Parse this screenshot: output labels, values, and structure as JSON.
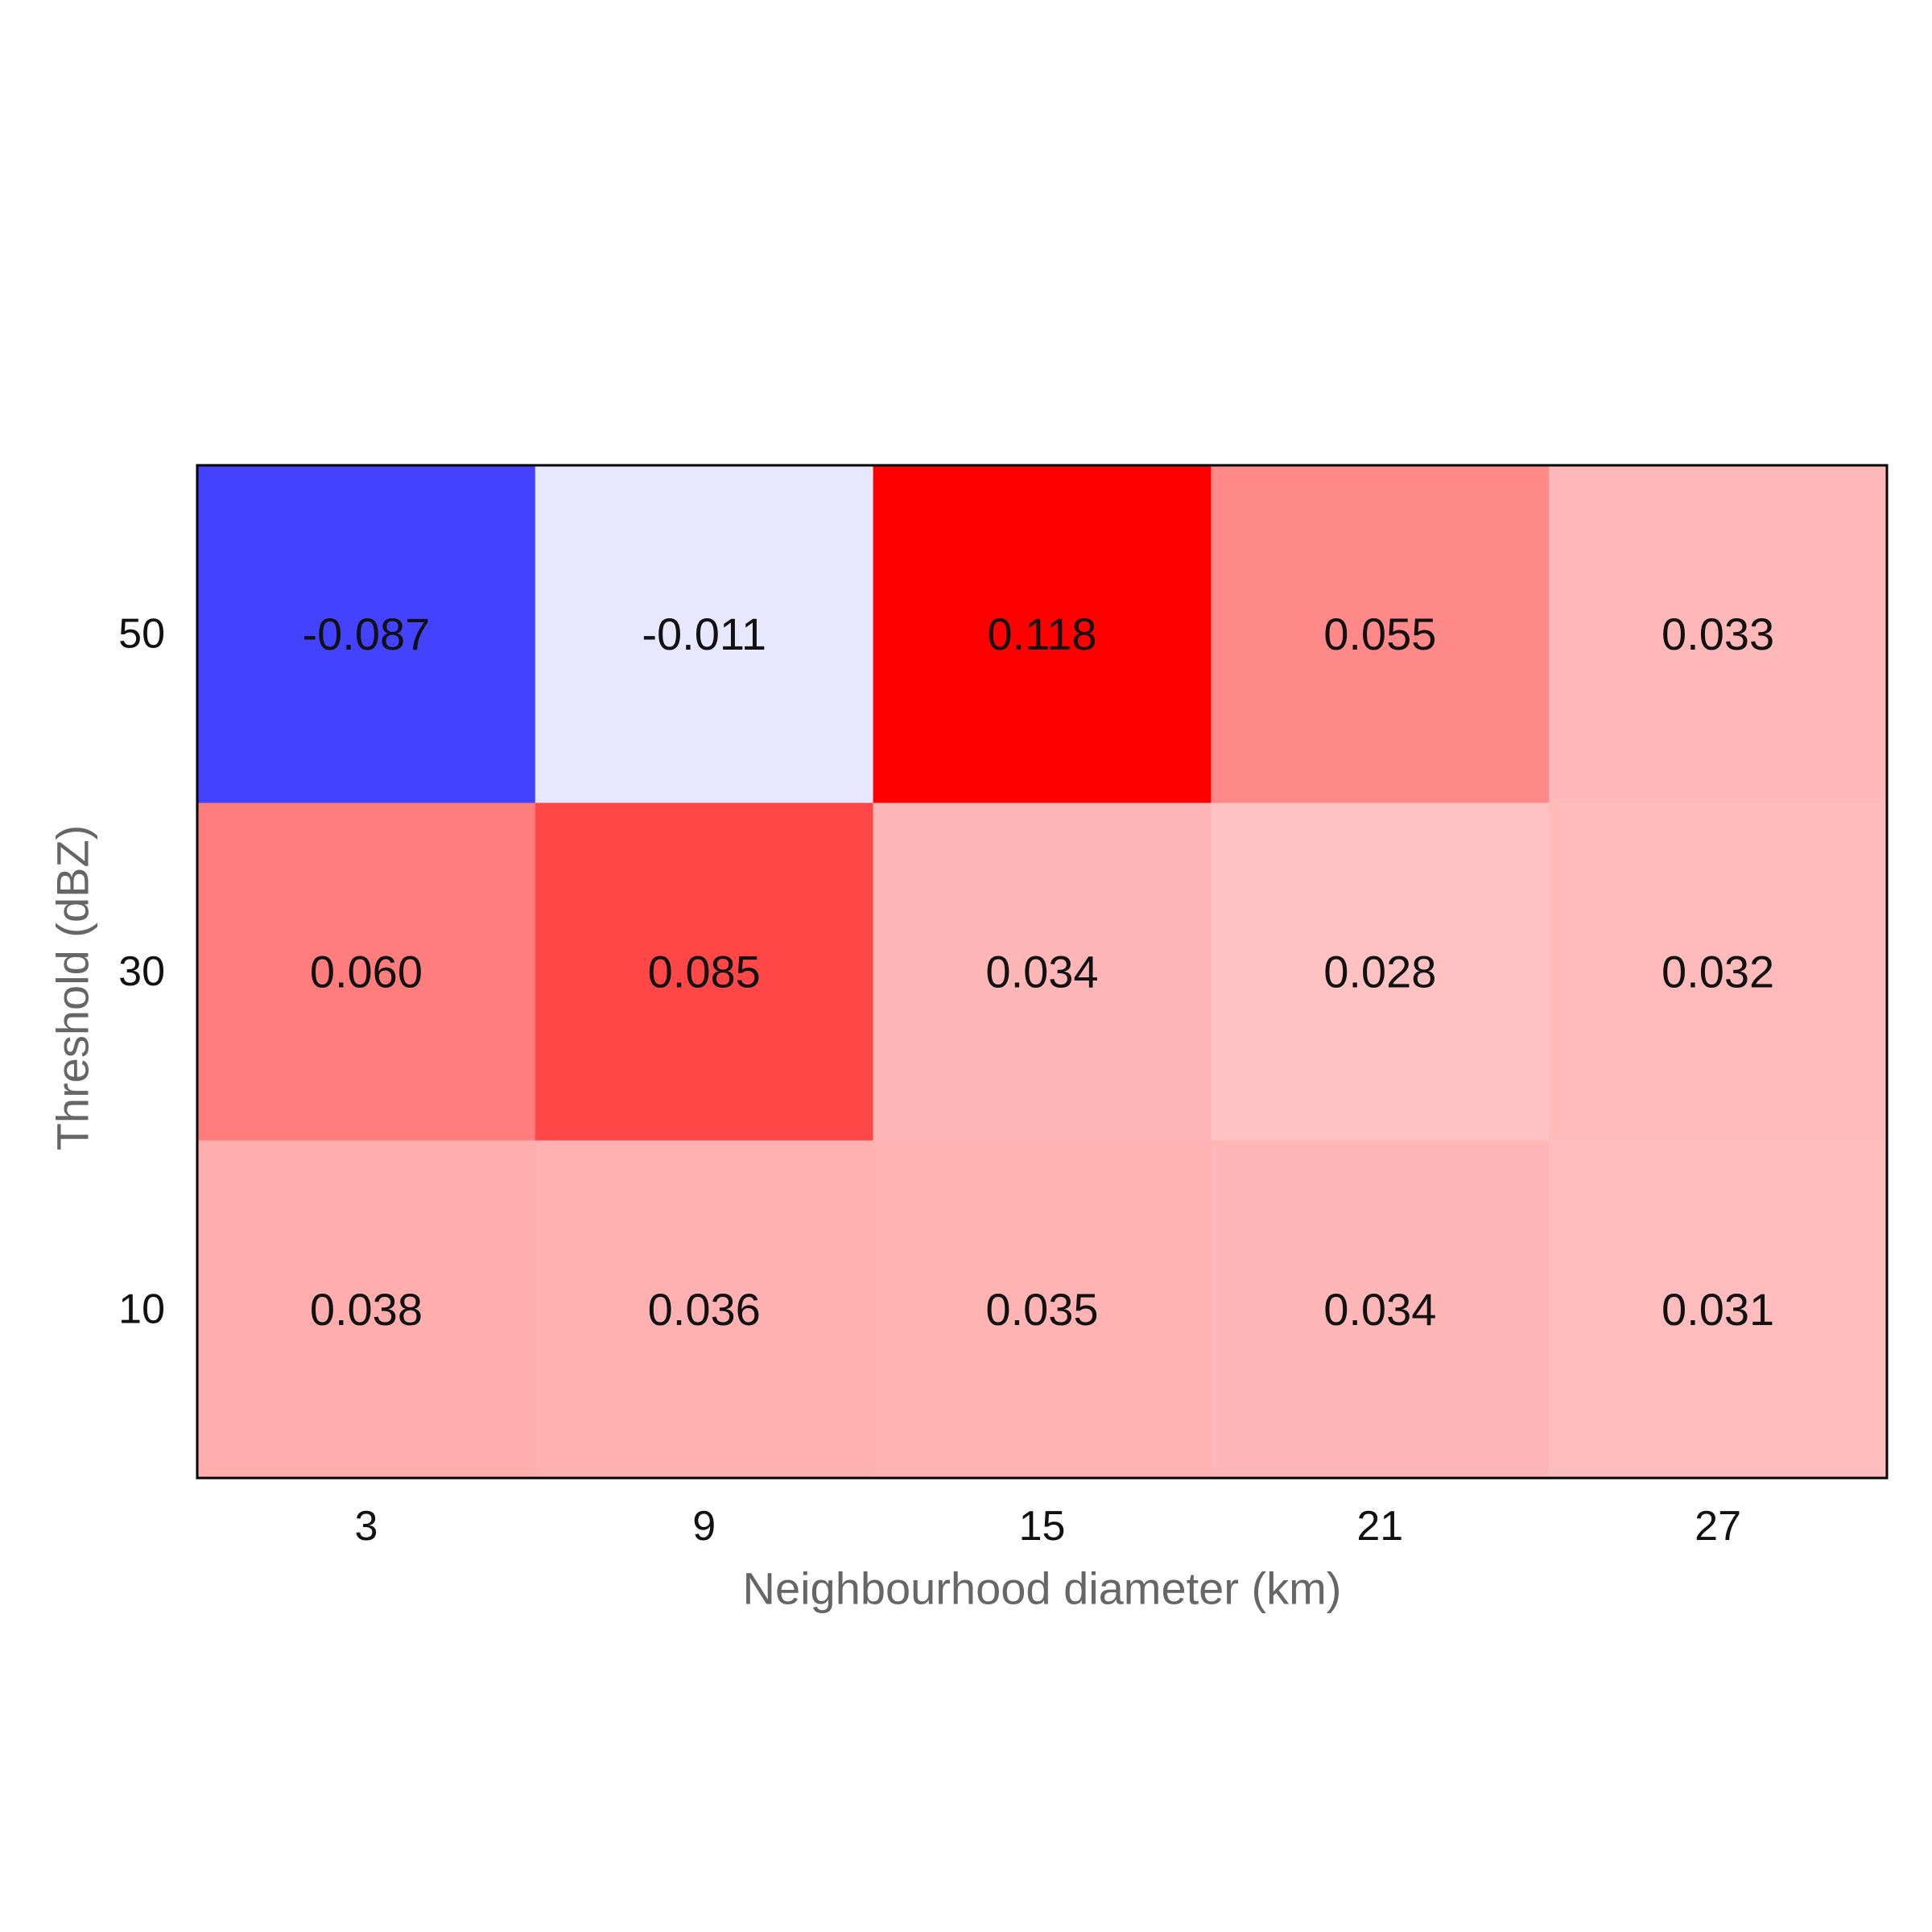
{
  "chart_data": {
    "type": "heatmap",
    "title": "",
    "xlabel": "Neighbourhood diameter (km)",
    "ylabel": "Threshold (dBZ)",
    "x_categories": [
      "3",
      "9",
      "15",
      "21",
      "27"
    ],
    "y_categories": [
      "50",
      "30",
      "10"
    ],
    "values": [
      [
        -0.087,
        -0.011,
        0.118,
        0.055,
        0.033
      ],
      [
        0.06,
        0.085,
        0.034,
        0.028,
        0.032
      ],
      [
        0.038,
        0.036,
        0.035,
        0.034,
        0.031
      ]
    ],
    "value_labels": [
      [
        "-0.087",
        "-0.011",
        "0.118",
        "0.055",
        "0.033"
      ],
      [
        "0.060",
        "0.085",
        "0.034",
        "0.028",
        "0.032"
      ],
      [
        "0.038",
        "0.036",
        "0.035",
        "0.034",
        "0.031"
      ]
    ],
    "colormap": "bwr",
    "vmin": -0.118,
    "vmax": 0.118,
    "colors": {
      "negative": "#0000ff",
      "center": "#ffffff",
      "positive": "#ff0000"
    },
    "grid": false,
    "legend": "none"
  }
}
